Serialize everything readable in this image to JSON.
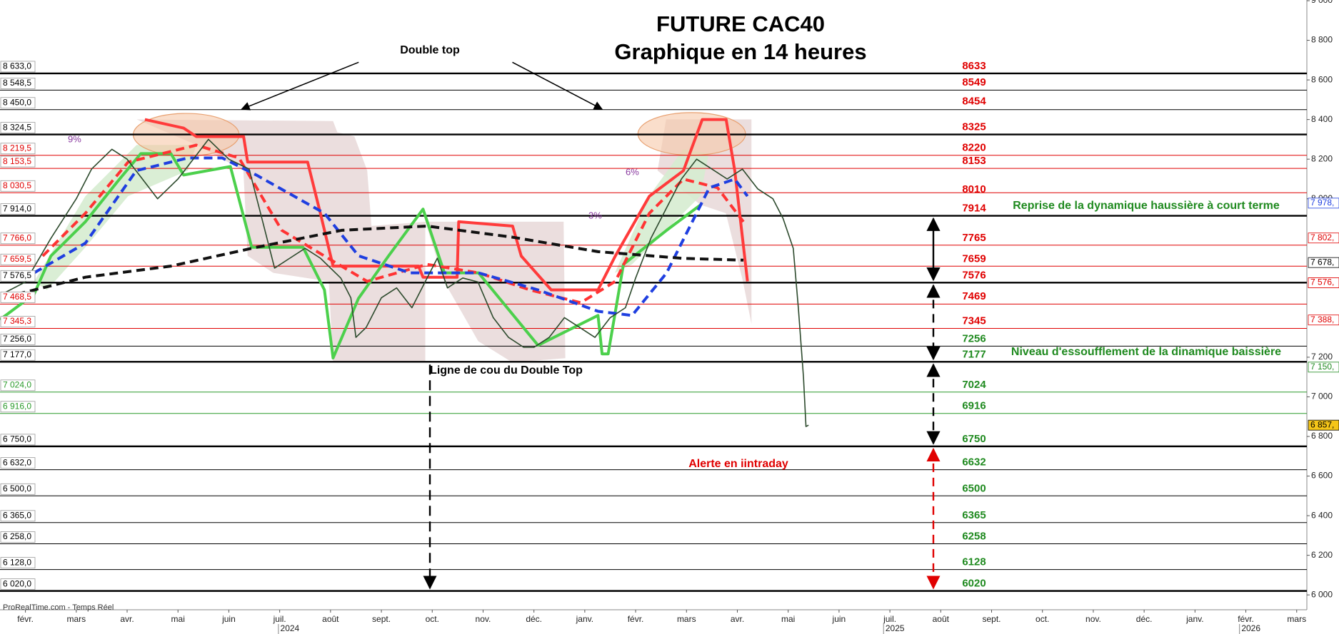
{
  "chart_data": {
    "type": "line",
    "title": "FUTURE CAC40",
    "subtitle": "Graphique en 14 heures",
    "annotations": {
      "double_top": "Double top",
      "reprise": "Reprise de la dynamique haussière à court terme",
      "niveau": "Niveau d'essoufflement de la dinamique baissière",
      "ligne_cou": "Ligne de cou du Double Top",
      "alerte": "Alerte en iintraday",
      "source": "ProRealTime.com - Temps Réel",
      "pct_1": "9%",
      "pct_2": "6%",
      "pct_3": "3%"
    },
    "xlim": [
      -0.5,
      25.2
    ],
    "xticks": [
      {
        "value": 0,
        "label": "févr."
      },
      {
        "value": 1,
        "label": "mars"
      },
      {
        "value": 2,
        "label": "avr."
      },
      {
        "value": 3,
        "label": "mai"
      },
      {
        "value": 4,
        "label": "juin"
      },
      {
        "value": 5,
        "label": "juil."
      },
      {
        "value": 6,
        "label": "août"
      },
      {
        "value": 7,
        "label": "sept."
      },
      {
        "value": 8,
        "label": "oct."
      },
      {
        "value": 9,
        "label": "nov."
      },
      {
        "value": 10,
        "label": "déc."
      },
      {
        "value": 11,
        "label": "janv."
      },
      {
        "value": 12,
        "label": "févr."
      },
      {
        "value": 13,
        "label": "mars"
      },
      {
        "value": 14,
        "label": "avr."
      },
      {
        "value": 15,
        "label": "mai"
      },
      {
        "value": 16,
        "label": "juin"
      },
      {
        "value": 17,
        "label": "juil."
      },
      {
        "value": 18,
        "label": "août"
      },
      {
        "value": 19,
        "label": "sept."
      },
      {
        "value": 20,
        "label": "oct."
      },
      {
        "value": 21,
        "label": "nov."
      },
      {
        "value": 22,
        "label": "déc."
      },
      {
        "value": 23,
        "label": "janv."
      },
      {
        "value": 24,
        "label": "févr."
      },
      {
        "value": 25,
        "label": "mars"
      }
    ],
    "year_labels": [
      {
        "value": 5.2,
        "label": "2024"
      },
      {
        "value": 17.1,
        "label": "2025"
      },
      {
        "value": 24.1,
        "label": "2026"
      }
    ],
    "ylim": [
      5925,
      9000
    ],
    "yticks": [
      {
        "value": 9000,
        "label": "9 000"
      },
      {
        "value": 8800,
        "label": "8 800"
      },
      {
        "value": 8600,
        "label": "8 600"
      },
      {
        "value": 8400,
        "label": "8 400"
      },
      {
        "value": 8200,
        "label": "8 200"
      },
      {
        "value": 8000,
        "label": "8 000"
      },
      {
        "value": 7200,
        "label": "7 200"
      },
      {
        "value": 7000,
        "label": "7 000"
      },
      {
        "value": 6800,
        "label": "6 800"
      },
      {
        "value": 6600,
        "label": "6 600"
      },
      {
        "value": 6400,
        "label": "6 400"
      },
      {
        "value": 6200,
        "label": "6 200"
      },
      {
        "value": 6000,
        "label": "6 000"
      }
    ],
    "levels": [
      {
        "value": 8633,
        "label": "8 633,0",
        "color": "#000000",
        "style": "thick"
      },
      {
        "value": 8548.5,
        "label": "8 548,5",
        "color": "#000000",
        "style": "thin"
      },
      {
        "value": 8450,
        "label": "8 450,0",
        "color": "#000000",
        "style": "thin"
      },
      {
        "value": 8324.5,
        "label": "8 324,5",
        "color": "#000000",
        "style": "thick"
      },
      {
        "value": 8219.5,
        "label": "8 219,5",
        "color": "#e00000",
        "style": "thin"
      },
      {
        "value": 8153.5,
        "label": "8 153,5",
        "color": "#e00000",
        "style": "thin"
      },
      {
        "value": 8030.5,
        "label": "8 030,5",
        "color": "#e00000",
        "style": "thin"
      },
      {
        "value": 7914,
        "label": "7 914,0",
        "color": "#000000",
        "style": "thick"
      },
      {
        "value": 7766,
        "label": "7 766,0",
        "color": "#e00000",
        "style": "thin"
      },
      {
        "value": 7659.5,
        "label": "7 659,5",
        "color": "#e00000",
        "style": "thin"
      },
      {
        "value": 7576.5,
        "label": "7 576,5",
        "color": "#000000",
        "style": "thick"
      },
      {
        "value": 7468.5,
        "label": "7 468,5",
        "color": "#e00000",
        "style": "thin"
      },
      {
        "value": 7345.3,
        "label": "7 345,3",
        "color": "#e00000",
        "style": "thin"
      },
      {
        "value": 7256,
        "label": "7 256,0",
        "color": "#000000",
        "style": "thin"
      },
      {
        "value": 7177,
        "label": "7 177,0",
        "color": "#000000",
        "style": "thick"
      },
      {
        "value": 7024,
        "label": "7 024,0",
        "color": "#2a9a2a",
        "style": "thin"
      },
      {
        "value": 6916,
        "label": "6 916,0",
        "color": "#2a9a2a",
        "style": "thin"
      },
      {
        "value": 6750,
        "label": "6 750,0",
        "color": "#000000",
        "style": "thick"
      },
      {
        "value": 6632,
        "label": "6 632,0",
        "color": "#000000",
        "style": "thin"
      },
      {
        "value": 6500,
        "label": "6 500,0",
        "color": "#000000",
        "style": "thin"
      },
      {
        "value": 6365,
        "label": "6 365,0",
        "color": "#000000",
        "style": "thin"
      },
      {
        "value": 6258,
        "label": "6 258,0",
        "color": "#000000",
        "style": "thin"
      },
      {
        "value": 6128,
        "label": "6 128,0",
        "color": "#000000",
        "style": "thin"
      },
      {
        "value": 6020,
        "label": "6 020,0",
        "color": "#000000",
        "style": "thick"
      }
    ],
    "targets": [
      {
        "value": 8633,
        "color": "#e00000"
      },
      {
        "value": 8549,
        "color": "#e00000"
      },
      {
        "value": 8454,
        "color": "#e00000"
      },
      {
        "value": 8325,
        "color": "#e00000"
      },
      {
        "value": 8220,
        "color": "#e00000"
      },
      {
        "value": 8153,
        "color": "#e00000"
      },
      {
        "value": 8010,
        "color": "#e00000"
      },
      {
        "value": 7914,
        "color": "#e00000"
      },
      {
        "value": 7765,
        "color": "#e00000"
      },
      {
        "value": 7659,
        "color": "#e00000"
      },
      {
        "value": 7576,
        "color": "#e00000"
      },
      {
        "value": 7469,
        "color": "#e00000"
      },
      {
        "value": 7345,
        "color": "#e00000"
      },
      {
        "value": 7256,
        "color": "#1f8a1f"
      },
      {
        "value": 7177,
        "color": "#1f8a1f"
      },
      {
        "value": 7024,
        "color": "#1f8a1f"
      },
      {
        "value": 6916,
        "color": "#1f8a1f"
      },
      {
        "value": 6750,
        "color": "#1f8a1f"
      },
      {
        "value": 6632,
        "color": "#1f8a1f"
      },
      {
        "value": 6500,
        "color": "#1f8a1f"
      },
      {
        "value": 6365,
        "color": "#1f8a1f"
      },
      {
        "value": 6258,
        "color": "#1f8a1f"
      },
      {
        "value": 6128,
        "color": "#1f8a1f"
      },
      {
        "value": 6020,
        "color": "#1f8a1f"
      }
    ],
    "right_markers": [
      {
        "value": 7978,
        "label": "7 978,",
        "color": "#1f3fe0"
      },
      {
        "value": 7802,
        "label": "7 802,",
        "color": "#e00000"
      },
      {
        "value": 7678,
        "label": "7 678,",
        "color": "#000000"
      },
      {
        "value": 7576,
        "label": "7 576,",
        "color": "#e00000"
      },
      {
        "value": 7576,
        "label": "7 576,",
        "color": "#e00000"
      },
      {
        "value": 7388,
        "label": "7 388,",
        "color": "#e00000"
      },
      {
        "value": 7150,
        "label": "7 150,",
        "color": "#1f8a1f"
      },
      {
        "value": 6857,
        "label": "6 857,",
        "color": "#000000",
        "background": "#f5c518"
      }
    ],
    "series": [
      {
        "color": "#ff3b3b",
        "style": "thick",
        "dash": false,
        "x": [
          2.35,
          3.11,
          3.36,
          4.29,
          4.37,
          5.55,
          5.8,
          6.05,
          7.73,
          7.82,
          8.49,
          8.52,
          9.58,
          9.75,
          10.34,
          11.26,
          11.6,
          12.27,
          12.94,
          13.31,
          13.78,
          13.95,
          14.2
        ],
        "values": [
          8400,
          8357,
          8314,
          8314,
          8185,
          8185,
          7927,
          7660,
          7660,
          7604,
          7604,
          7884,
          7862,
          7711,
          7540,
          7540,
          7711,
          8013,
          8142,
          8400,
          8400,
          8142,
          7583
        ]
      },
      {
        "color": "#4cd04c",
        "style": "thick",
        "dash": false,
        "x": [
          -0.5,
          0.17,
          0.5,
          1.18,
          1.85,
          2.27,
          2.86,
          3.11,
          4.03,
          4.45,
          5.46,
          5.88,
          6.05,
          6.55,
          7.14,
          7.82,
          8.24,
          8.91,
          10.08,
          11.26,
          11.34,
          11.46,
          11.76,
          12.61,
          13.28
        ],
        "values": [
          7390,
          7518,
          7711,
          7884,
          8099,
          8228,
          8228,
          8120,
          8163,
          7755,
          7755,
          7540,
          7196,
          7497,
          7711,
          7948,
          7626,
          7626,
          7260,
          7411,
          7217,
          7217,
          7669,
          7841,
          7970
        ]
      },
      {
        "color": "#ff3333",
        "style": "thick",
        "dash": true,
        "x": [
          0.34,
          1.18,
          2.02,
          3.36,
          4.2,
          5.04,
          5.88,
          6.72,
          7.9,
          8.91,
          9.92,
          10.92,
          11.6,
          12.27,
          12.94,
          13.61,
          14.12
        ],
        "values": [
          7711,
          7927,
          8185,
          8271,
          8206,
          7841,
          7711,
          7583,
          7669,
          7626,
          7540,
          7475,
          7583,
          7927,
          8099,
          8056,
          7884
        ]
      },
      {
        "color": "#1f3fe0",
        "style": "thick",
        "dash": true,
        "x": [
          0.17,
          1.18,
          2.18,
          3.19,
          3.87,
          4.54,
          5.88,
          6.55,
          7.56,
          8.91,
          10.08,
          11.26,
          11.93,
          12.61,
          13.45,
          13.95,
          14.2
        ],
        "values": [
          7626,
          7776,
          8142,
          8206,
          8206,
          8120,
          7927,
          7712,
          7626,
          7626,
          7540,
          7432,
          7411,
          7626,
          8056,
          8099,
          8013
        ]
      },
      {
        "color": "#111111",
        "style": "thick",
        "dash": true,
        "x": [
          -0.17,
          1.18,
          2.86,
          4.54,
          6.22,
          7.9,
          9.58,
          11.26,
          12.94,
          14.12
        ],
        "values": [
          7518,
          7604,
          7660,
          7755,
          7841,
          7862,
          7806,
          7733,
          7699,
          7690
        ]
      },
      {
        "color": "#2d4a2d",
        "style": "thin",
        "dash": false,
        "x": [
          -0.45,
          0,
          0.5,
          1.0,
          1.3,
          1.7,
          2.0,
          2.3,
          2.6,
          3.0,
          3.3,
          3.6,
          4.0,
          4.4,
          4.6,
          4.9,
          5.2,
          5.5,
          5.8,
          6.2,
          6.4,
          6.5,
          6.7,
          7.0,
          7.3,
          7.6,
          7.9,
          8.1,
          8.3,
          8.6,
          8.9,
          9.2,
          9.5,
          9.8,
          10.0,
          10.3,
          10.6,
          10.9,
          11.2,
          11.5,
          11.8,
          12.0,
          12.3,
          12.6,
          12.9,
          13.2,
          13.5,
          13.8,
          14.1,
          14.4,
          14.7,
          14.9,
          15.1,
          15.2,
          15.3,
          15.35,
          15.4
        ],
        "values": [
          7520,
          7580,
          7800,
          8000,
          8150,
          8250,
          8200,
          8100,
          8000,
          8100,
          8200,
          8300,
          8200,
          8150,
          7950,
          7650,
          7700,
          7750,
          7700,
          7600,
          7500,
          7300,
          7350,
          7500,
          7550,
          7450,
          7600,
          7700,
          7550,
          7600,
          7580,
          7400,
          7300,
          7250,
          7250,
          7300,
          7400,
          7350,
          7300,
          7400,
          7450,
          7600,
          7800,
          7950,
          8100,
          8200,
          8150,
          8100,
          8150,
          8050,
          8000,
          7900,
          7750,
          7450,
          7100,
          6850,
          6857
        ]
      }
    ]
  }
}
